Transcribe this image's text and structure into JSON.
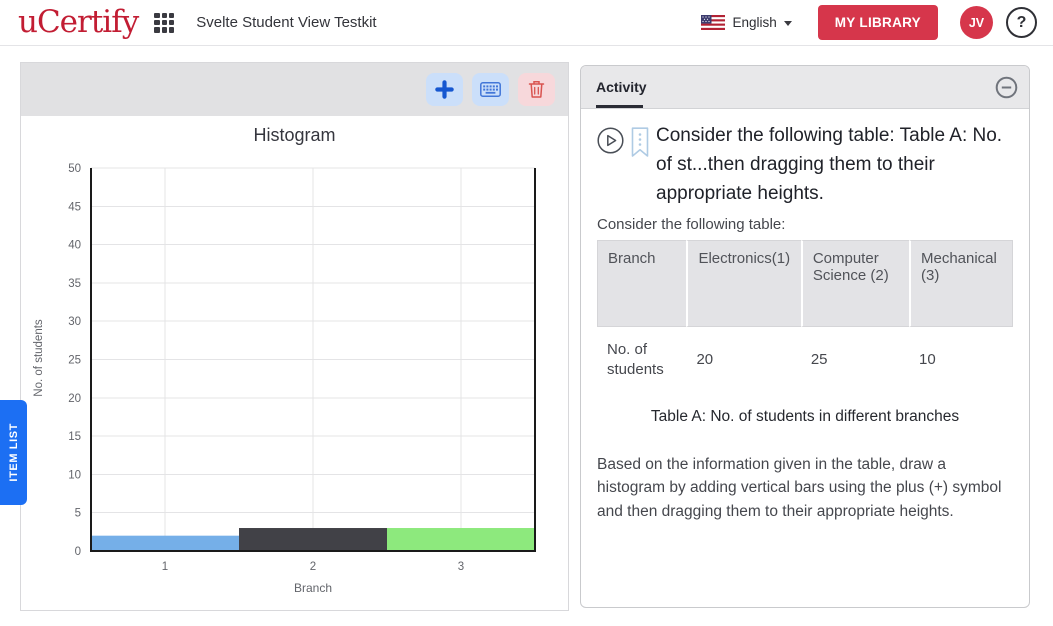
{
  "header": {
    "logo": "uCertify",
    "title": "Svelte Student View Testkit",
    "language": "English",
    "my_library_label": "MY LIBRARY",
    "avatar_initials": "JV",
    "help_label": "?"
  },
  "item_list_tab": "ITEM LIST",
  "chart_data": {
    "type": "bar",
    "title": "Histogram",
    "categories": [
      "1",
      "2",
      "3"
    ],
    "values": [
      2,
      3,
      3
    ],
    "bar_colors": [
      "#75afe8",
      "#414147",
      "#8de97d"
    ],
    "xlabel": "Branch",
    "ylabel": "No. of students",
    "ylim": [
      0,
      50
    ],
    "ytick_step": 5,
    "grid": true,
    "legend": "none"
  },
  "activity": {
    "tab_label": "Activity",
    "question_title": "Consider the following table: Table A: No. of st...then dragging them to their appropriate heights.",
    "table_intro": "Consider the following table:",
    "table": {
      "header": [
        "Branch",
        "Electronics(1)",
        "Computer Science (2)",
        "Mechanical (3)"
      ],
      "rows": [
        [
          "No. of students",
          "20",
          "25",
          "10"
        ]
      ]
    },
    "caption": "Table A: No. of students in different branches",
    "instruction": "Based on the information given in the table, draw a histogram by adding vertical bars using the plus (+) symbol and then dragging them to their appropriate heights."
  },
  "colors": {
    "brand_red": "#d6364b",
    "logo_red": "#c21d33",
    "item_list_blue": "#1c6ff3",
    "toolbar_button_blue_bg": "#cbdffa",
    "toolbar_button_red_bg": "#f7d8db",
    "axis_black": "#1a1a1a",
    "gridline": "#e4e4e6"
  }
}
